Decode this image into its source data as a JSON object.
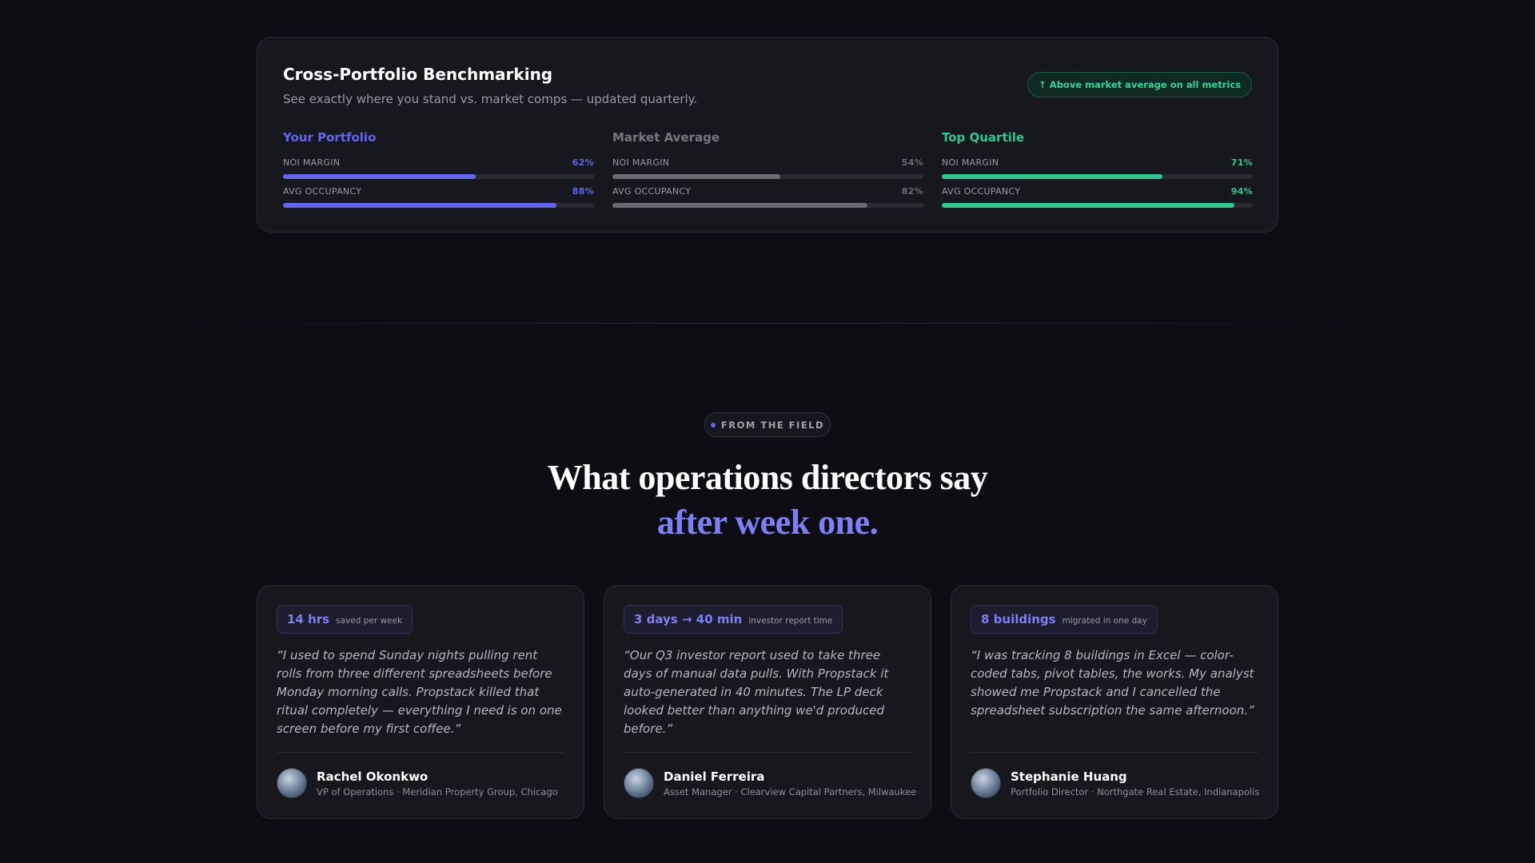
{
  "benchmark": {
    "title": "Cross-Portfolio Benchmarking",
    "subtitle": "See exactly where you stand vs. market comps — updated quarterly.",
    "badge": "↑ Above market average on all metrics",
    "columns": [
      {
        "name": "Your Portfolio",
        "color": "#6366f1",
        "metrics": [
          {
            "label": "NOI MARGIN",
            "value": 62,
            "value_label": "62%"
          },
          {
            "label": "AVG OCCUPANCY",
            "value": 88,
            "value_label": "88%"
          }
        ]
      },
      {
        "name": "Market Average",
        "color": "#6b6b74",
        "metrics": [
          {
            "label": "NOI MARGIN",
            "value": 54,
            "value_label": "54%"
          },
          {
            "label": "AVG OCCUPANCY",
            "value": 82,
            "value_label": "82%"
          }
        ]
      },
      {
        "name": "Top Quartile",
        "color": "#2fc98e",
        "metrics": [
          {
            "label": "NOI MARGIN",
            "value": 71,
            "value_label": "71%"
          },
          {
            "label": "AVG OCCUPANCY",
            "value": 94,
            "value_label": "94%"
          }
        ]
      }
    ]
  },
  "section": {
    "eyebrow": "FROM THE FIELD",
    "heading_line1": "What operations directors say",
    "heading_line2": "after week one."
  },
  "testimonials": [
    {
      "stat": "14 hrs",
      "stat_label": "saved per week",
      "quote": "“I used to spend Sunday nights pulling rent rolls from three different spreadsheets before Monday morning calls. Propstack killed that ritual completely — everything I need is on one screen before my first coffee.”",
      "name": "Rachel Okonkwo",
      "role": "VP of Operations · Meridian Property Group, Chicago"
    },
    {
      "stat": "3 days → 40 min",
      "stat_label": "investor report time",
      "quote": "“Our Q3 investor report used to take three days of manual data pulls. With Propstack it auto-generated in 40 minutes. The LP deck looked better than anything we'd produced before.”",
      "name": "Daniel Ferreira",
      "role": "Asset Manager · Clearview Capital Partners, Milwaukee"
    },
    {
      "stat": "8 buildings",
      "stat_label": "migrated in one day",
      "quote": "“I was tracking 8 buildings in Excel — color-coded tabs, pivot tables, the works. My analyst showed me Propstack and I cancelled the spreadsheet subscription the same afternoon.”",
      "name": "Stephanie Huang",
      "role": "Portfolio Director · Northgate Real Estate, Indianapolis"
    }
  ]
}
